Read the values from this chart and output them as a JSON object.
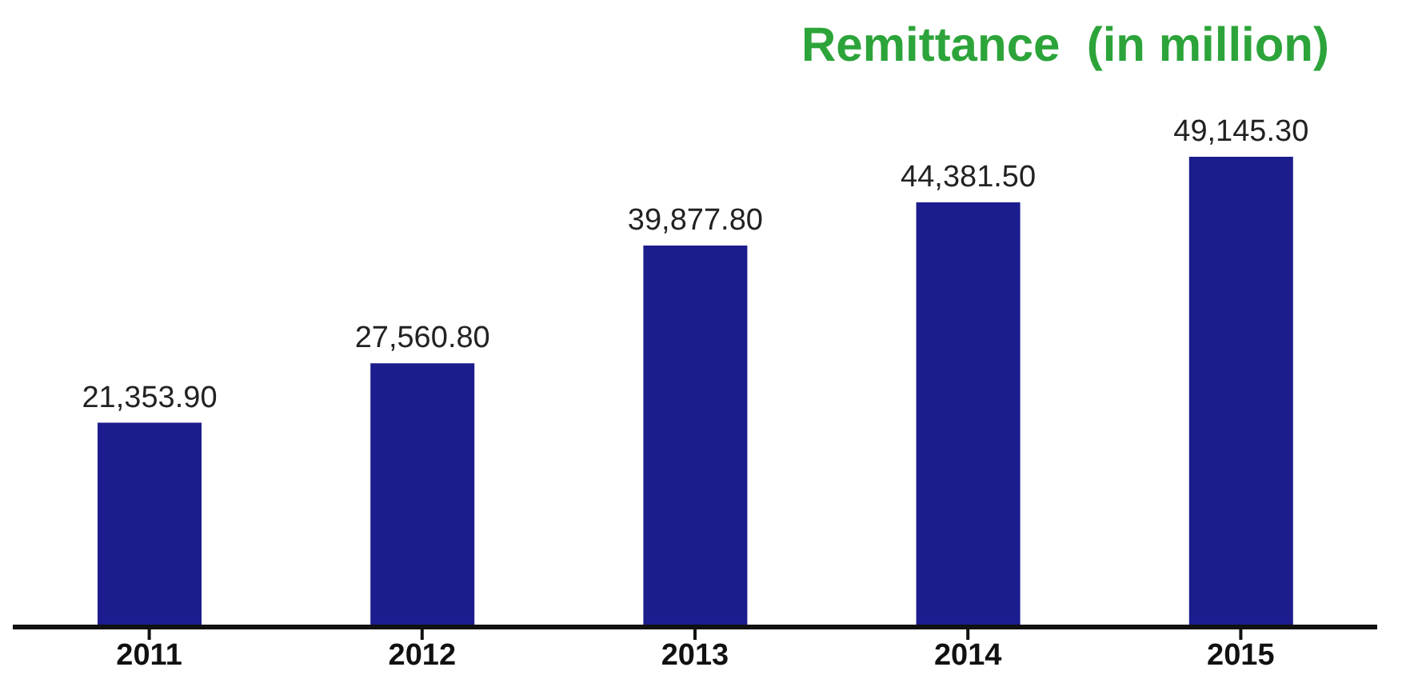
{
  "chart_data": {
    "type": "bar",
    "title": "Remittance  (in million)",
    "categories": [
      "2011",
      "2012",
      "2013",
      "2014",
      "2015"
    ],
    "values": [
      21353.9,
      27560.8,
      39877.8,
      44381.5,
      49145.3
    ],
    "value_labels": [
      "21,353.90",
      "27,560.80",
      "39,877.80",
      "44,381.50",
      "49,145.30"
    ],
    "color": "#1c1c8e"
  }
}
